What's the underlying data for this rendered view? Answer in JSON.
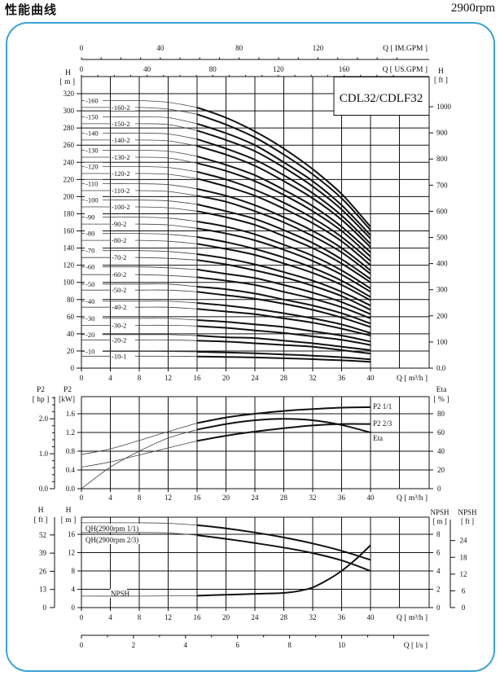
{
  "header": {
    "title": "性能曲线",
    "speed": "2900rpm"
  },
  "colors": {
    "frame": "#3aa3d4",
    "curve": "#111111",
    "grid": "#111111"
  },
  "chart_data": [
    {
      "type": "line",
      "model": "CDL32/CDLF32",
      "x_label": "Q [ m³/h ]",
      "x_ticks": [
        "0",
        "4",
        "8",
        "12",
        "16",
        "20",
        "24",
        "28",
        "32",
        "36",
        "40"
      ],
      "xlim": [
        0,
        48
      ],
      "y_label": [
        "H",
        "[ m ]"
      ],
      "ylim": [
        0,
        340
      ],
      "y_ticks": [
        "0",
        "20",
        "40",
        "60",
        "80",
        "100",
        "120",
        "140",
        "160",
        "180",
        "200",
        "220",
        "240",
        "260",
        "280",
        "300",
        "320"
      ],
      "y_right_label": [
        "H",
        "[ ft ]"
      ],
      "y_right_ticks": [
        "0.0",
        "100",
        "200",
        "300",
        "400",
        "500",
        "600",
        "700",
        "800",
        "900",
        "1000"
      ],
      "im_gpm_axis": {
        "label": "Q [ IM.GPM ]",
        "ticks": [
          "0",
          "40",
          "80",
          "120"
        ]
      },
      "us_gpm_axis": {
        "label": "Q [ US.GPM ]",
        "ticks": [
          "0",
          "40",
          "80",
          "120",
          "160"
        ]
      },
      "grid": true,
      "q": [
        0,
        4,
        8,
        12,
        16,
        20,
        24,
        28,
        32,
        36,
        40
      ],
      "series": [
        {
          "name": "-160",
          "values": [
            312,
            312,
            312,
            310,
            304,
            292,
            276,
            256,
            232,
            203,
            165
          ]
        },
        {
          "name": "-160-2",
          "values": [
            304,
            304,
            304,
            302,
            296,
            284,
            269,
            249,
            226,
            198,
            161
          ]
        },
        {
          "name": "-150",
          "values": [
            293,
            293,
            293,
            292,
            285,
            274,
            260,
            240,
            218,
            190,
            155
          ]
        },
        {
          "name": "-150-2",
          "values": [
            285,
            285,
            285,
            284,
            277,
            266,
            253,
            234,
            212,
            185,
            151
          ]
        },
        {
          "name": "-140",
          "values": [
            274,
            274,
            274,
            273,
            267,
            256,
            243,
            225,
            204,
            178,
            145
          ]
        },
        {
          "name": "-140-2",
          "values": [
            266,
            266,
            266,
            265,
            259,
            249,
            236,
            218,
            198,
            173,
            141
          ]
        },
        {
          "name": "-130",
          "values": [
            254,
            254,
            254,
            253,
            247,
            237,
            225,
            208,
            189,
            165,
            135
          ]
        },
        {
          "name": "-130-2",
          "values": [
            246,
            246,
            246,
            245,
            239,
            230,
            218,
            202,
            183,
            160,
            130
          ]
        },
        {
          "name": "-120",
          "values": [
            235,
            235,
            235,
            234,
            229,
            220,
            208,
            193,
            175,
            153,
            125
          ]
        },
        {
          "name": "-120-2",
          "values": [
            227,
            227,
            227,
            226,
            221,
            212,
            201,
            186,
            169,
            148,
            120
          ]
        },
        {
          "name": "-110",
          "values": [
            215,
            215,
            215,
            214,
            209,
            201,
            190,
            176,
            160,
            140,
            114
          ]
        },
        {
          "name": "-110-2",
          "values": [
            207,
            207,
            207,
            206,
            201,
            194,
            183,
            170,
            154,
            135,
            110
          ]
        },
        {
          "name": "-100",
          "values": [
            196,
            196,
            196,
            195,
            191,
            183,
            174,
            161,
            146,
            127,
            104
          ]
        },
        {
          "name": "-100-2",
          "values": [
            188,
            188,
            188,
            187,
            183,
            176,
            167,
            154,
            140,
            122,
            100
          ]
        },
        {
          "name": "-90",
          "values": [
            176,
            176,
            176,
            175,
            171,
            165,
            156,
            144,
            131,
            114,
            93
          ]
        },
        {
          "name": "-90-2",
          "values": [
            168,
            168,
            168,
            167,
            163,
            157,
            149,
            138,
            125,
            109,
            89
          ]
        },
        {
          "name": "-80",
          "values": [
            157,
            157,
            157,
            156,
            153,
            147,
            139,
            129,
            117,
            102,
            83
          ]
        },
        {
          "name": "-80-2",
          "values": [
            149,
            149,
            149,
            148,
            145,
            139,
            132,
            122,
            111,
            97,
            79
          ]
        },
        {
          "name": "-70",
          "values": [
            137,
            137,
            137,
            136,
            133,
            128,
            121,
            112,
            102,
            89,
            73
          ]
        },
        {
          "name": "-70-2",
          "values": [
            129,
            129,
            129,
            128,
            126,
            121,
            114,
            106,
            96,
            84,
            68
          ]
        },
        {
          "name": "-60",
          "values": [
            118,
            118,
            118,
            117,
            115,
            110,
            105,
            97,
            88,
            77,
            63
          ]
        },
        {
          "name": "-60-2",
          "values": [
            109,
            109,
            109,
            108,
            106,
            102,
            97,
            89,
            81,
            71,
            58
          ]
        },
        {
          "name": "-50",
          "values": [
            98,
            98,
            98,
            98,
            95,
            92,
            87,
            80,
            73,
            64,
            52
          ]
        },
        {
          "name": "-50-2",
          "values": [
            91,
            91,
            91,
            91,
            89,
            85,
            81,
            75,
            68,
            59,
            48
          ]
        },
        {
          "name": "-40",
          "values": [
            78,
            78,
            78,
            78,
            76,
            73,
            69,
            64,
            58,
            51,
            41
          ]
        },
        {
          "name": "-40-2",
          "values": [
            71,
            71,
            71,
            71,
            69,
            66,
            63,
            58,
            53,
            46,
            38
          ]
        },
        {
          "name": "-30",
          "values": [
            58,
            58,
            58,
            58,
            56,
            54,
            51,
            48,
            43,
            38,
            31
          ]
        },
        {
          "name": "-30-2",
          "values": [
            50,
            50,
            50,
            50,
            49,
            47,
            44,
            41,
            37,
            33,
            27
          ]
        },
        {
          "name": "-20",
          "values": [
            39,
            39,
            39,
            39,
            38,
            36,
            35,
            32,
            29,
            25,
            21
          ]
        },
        {
          "name": "-20-2",
          "values": [
            33,
            33,
            33,
            33,
            32,
            31,
            29,
            27,
            25,
            21,
            17
          ]
        },
        {
          "name": "-10",
          "values": [
            19.5,
            19.5,
            19.5,
            19.4,
            19,
            18.2,
            17.3,
            16,
            14.5,
            12.7,
            10.3
          ]
        },
        {
          "name": "-10-1",
          "values": [
            14,
            14,
            14,
            13.9,
            13.6,
            13.1,
            12.4,
            11.5,
            10.4,
            9.1,
            7.4
          ]
        }
      ]
    },
    {
      "type": "line",
      "x_label": "Q [ m³/h ]",
      "x_ticks": [
        "0",
        "4",
        "8",
        "12",
        "16",
        "20",
        "24",
        "28",
        "32",
        "36",
        "40"
      ],
      "xlim": [
        0,
        48
      ],
      "y_label": [
        "P2",
        "[kW]"
      ],
      "y_ticks": [
        "0.0",
        "0.4",
        "0.8",
        "1.2",
        "1.6"
      ],
      "ylim": [
        0,
        1.96
      ],
      "y_hp_label": [
        "P2",
        "[ hp ]"
      ],
      "y_hp_ticks": [
        "0.0",
        "1.0",
        "2.0"
      ],
      "y_right_label": [
        "Eta",
        "[ % ]"
      ],
      "y_right_ticks": [
        "0",
        "20",
        "40",
        "60",
        "80"
      ],
      "grid": true,
      "q": [
        0,
        4,
        8,
        12,
        16,
        20,
        24,
        28,
        32,
        36,
        40
      ],
      "series": [
        {
          "name": "P2  1/1",
          "axis": "kW",
          "values": [
            0.73,
            0.85,
            1.03,
            1.22,
            1.4,
            1.52,
            1.6,
            1.66,
            1.7,
            1.73,
            1.74
          ]
        },
        {
          "name": "P2  2/3",
          "axis": "kW",
          "values": [
            0.46,
            0.57,
            0.72,
            0.87,
            1.02,
            1.13,
            1.22,
            1.29,
            1.35,
            1.38,
            1.38
          ]
        },
        {
          "name": "Eta",
          "axis": "%",
          "values": [
            0,
            23,
            40,
            54,
            63,
            69,
            73,
            74.5,
            73,
            68,
            60
          ]
        }
      ]
    },
    {
      "type": "line",
      "x_label": "Q [ m³/h ]",
      "x_ticks": [
        "0",
        "4",
        "8",
        "12",
        "16",
        "20",
        "24",
        "28",
        "32",
        "36",
        "40"
      ],
      "xlim": [
        0,
        48
      ],
      "y_label": [
        "H",
        "[ m ]"
      ],
      "y_ticks": [
        "0",
        "4",
        "8",
        "12",
        "16"
      ],
      "ylim": [
        0,
        19.7
      ],
      "y_ft_label": [
        "H",
        "[ ft ]"
      ],
      "y_ft_ticks": [
        "0",
        "13",
        "26",
        "39",
        "52"
      ],
      "y_right_label": [
        "NPSH",
        "[ m ]"
      ],
      "y_right_ticks": [
        "0",
        "2",
        "4",
        "6",
        "8"
      ],
      "y_right_ft_label": [
        "NPSH",
        "[ ft ]"
      ],
      "y_right_ft_ticks": [
        "0",
        "6",
        "12",
        "18",
        "24"
      ],
      "ls_axis": {
        "label": "Q [ l/s ]",
        "ticks": [
          "0",
          "2",
          "4",
          "6",
          "8",
          "10"
        ]
      },
      "grid": true,
      "series": [
        {
          "name": "QH(2900rpm 1/1)",
          "axis": "m",
          "q": [
            0,
            4,
            8,
            12,
            16,
            20,
            24,
            28,
            32,
            36,
            40
          ],
          "values": [
            18.5,
            18.5,
            18.5,
            18.4,
            18.0,
            17.3,
            16.4,
            15.3,
            14.0,
            12.4,
            10.4
          ]
        },
        {
          "name": "QH(2900rpm 2/3)",
          "axis": "m",
          "q": [
            0,
            4,
            8,
            12,
            16,
            20,
            24,
            28,
            32,
            36,
            40
          ],
          "values": [
            16.4,
            16.4,
            16.4,
            16.3,
            15.8,
            15.0,
            14.1,
            13.1,
            11.9,
            10.3,
            8.0
          ]
        },
        {
          "name": "NPSH",
          "axis": "npsh_m",
          "q": [
            0,
            8,
            16,
            20,
            24,
            28,
            30,
            32,
            34,
            36,
            38,
            40
          ],
          "values": [
            1.25,
            1.25,
            1.3,
            1.4,
            1.5,
            1.6,
            1.8,
            2.2,
            3.0,
            4.0,
            5.3,
            6.8
          ]
        }
      ]
    }
  ]
}
